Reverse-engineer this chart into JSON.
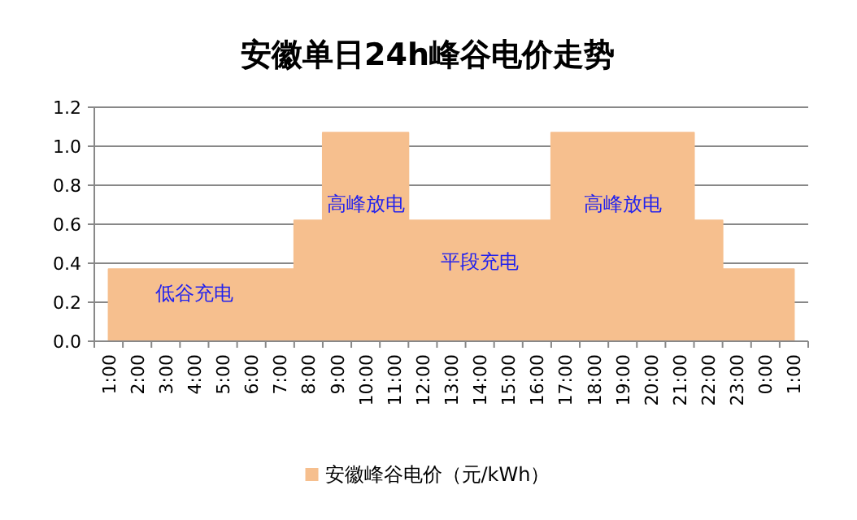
{
  "chart_data": {
    "type": "area",
    "title": "安徽单日24h峰谷电价走势",
    "categories": [
      "1:00",
      "2:00",
      "3:00",
      "4:00",
      "5:00",
      "6:00",
      "7:00",
      "8:00",
      "9:00",
      "10:00",
      "11:00",
      "12:00",
      "13:00",
      "14:00",
      "15:00",
      "16:00",
      "17:00",
      "18:00",
      "19:00",
      "20:00",
      "21:00",
      "22:00",
      "23:00",
      "0:00",
      "1:00"
    ],
    "series": [
      {
        "name": "安徽峰谷电价（元/kWh）",
        "color": "#f6bf8e",
        "values": [
          0.37,
          0.37,
          0.37,
          0.37,
          0.37,
          0.37,
          0.37,
          0.62,
          1.07,
          1.07,
          1.07,
          0.62,
          0.62,
          0.62,
          0.62,
          0.62,
          1.07,
          1.07,
          1.07,
          1.07,
          1.07,
          0.62,
          0.37,
          0.37,
          0.37
        ]
      }
    ],
    "ylim": [
      0,
      1.2
    ],
    "yticks": [
      {
        "value": 0,
        "label": "0.0"
      },
      0.2,
      0.4,
      0.6,
      0.8,
      {
        "value": 1,
        "label": "1.0"
      },
      1.2
    ],
    "grid": "y",
    "legend": "bottom",
    "annotations": [
      "低谷充电",
      "高峰放电",
      "平段充电",
      "高峰放电"
    ]
  }
}
